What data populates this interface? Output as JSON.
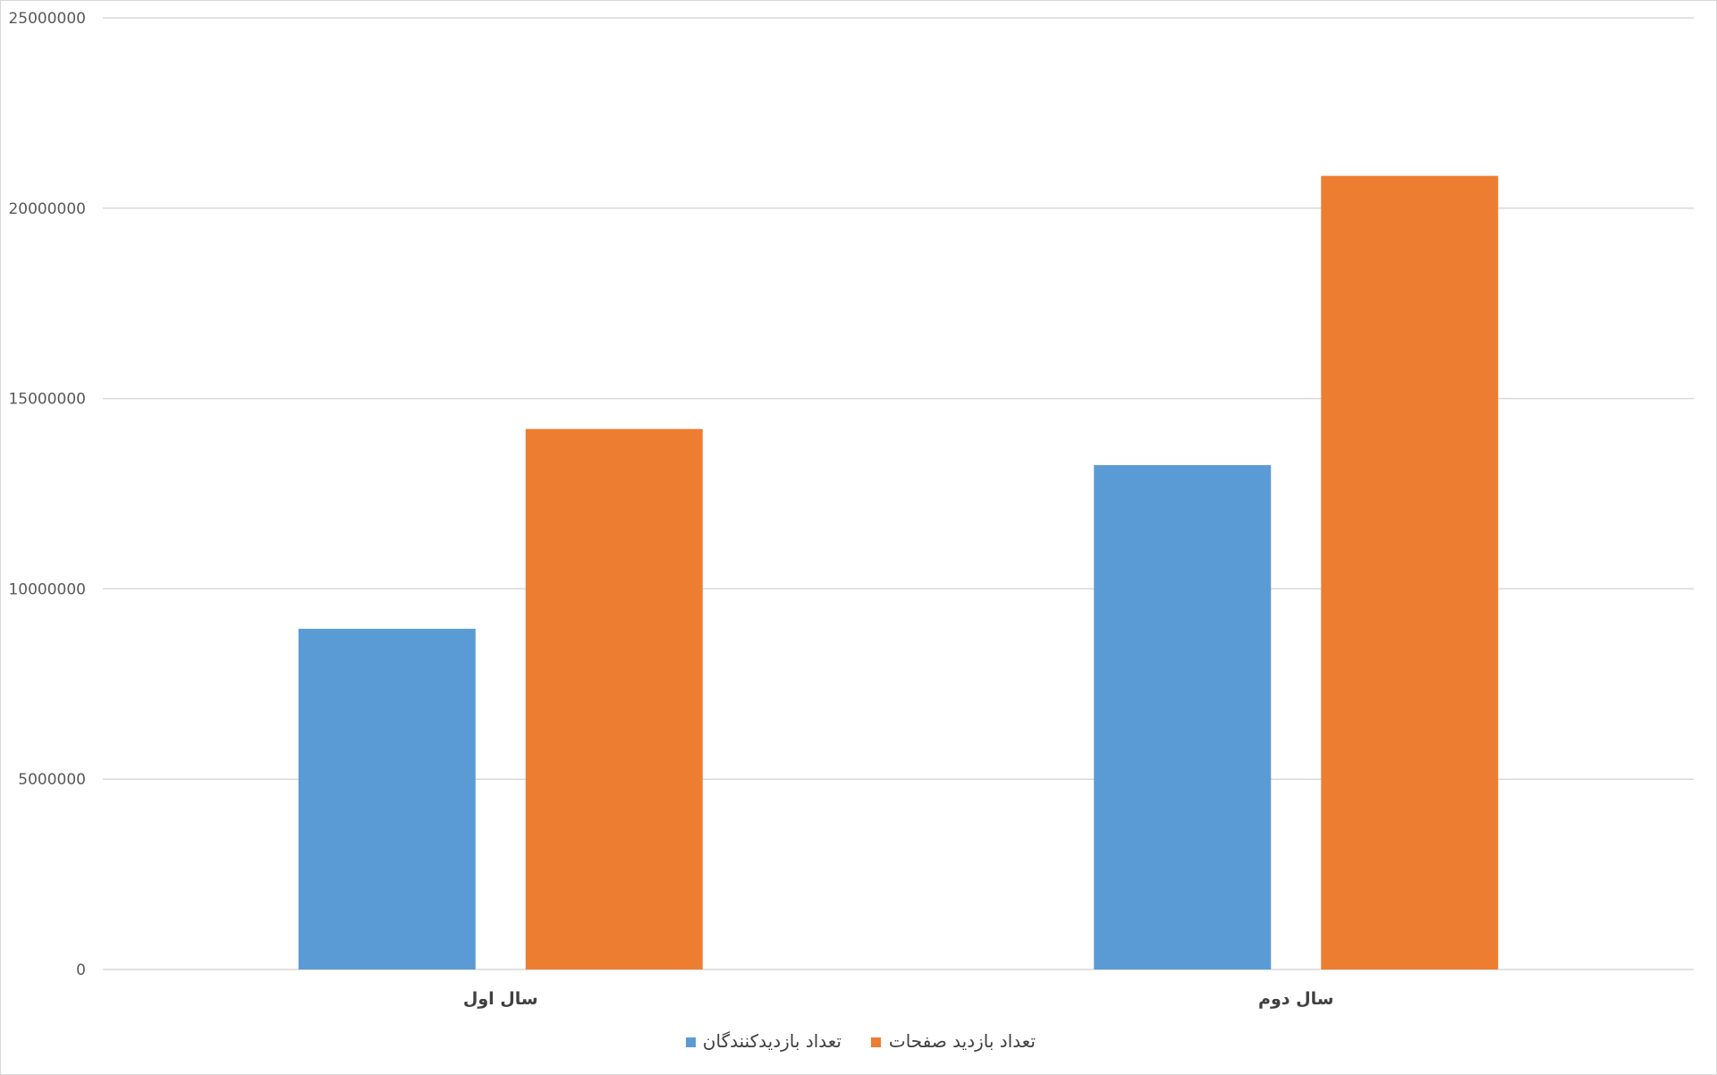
{
  "chart_data": {
    "type": "bar",
    "title": "",
    "xlabel": "",
    "ylabel": "",
    "categories": [
      "سال اول",
      "سال دوم"
    ],
    "series": [
      {
        "name": "تعداد بازدیدکنندگان",
        "color": "#5B9BD5",
        "values": [
          8950000,
          13250000
        ]
      },
      {
        "name": "تعداد بازدید صفحات",
        "color": "#ED7D31",
        "values": [
          14200000,
          20850000
        ]
      }
    ],
    "ylim": [
      0,
      25000000
    ],
    "yticks": [
      0,
      5000000,
      10000000,
      15000000,
      20000000,
      25000000
    ],
    "ytick_labels": [
      "0",
      "5000000",
      "10000000",
      "15000000",
      "20000000",
      "25000000"
    ],
    "grid": true,
    "gridline_color": "#d9d9d9",
    "legend_position": "bottom"
  }
}
